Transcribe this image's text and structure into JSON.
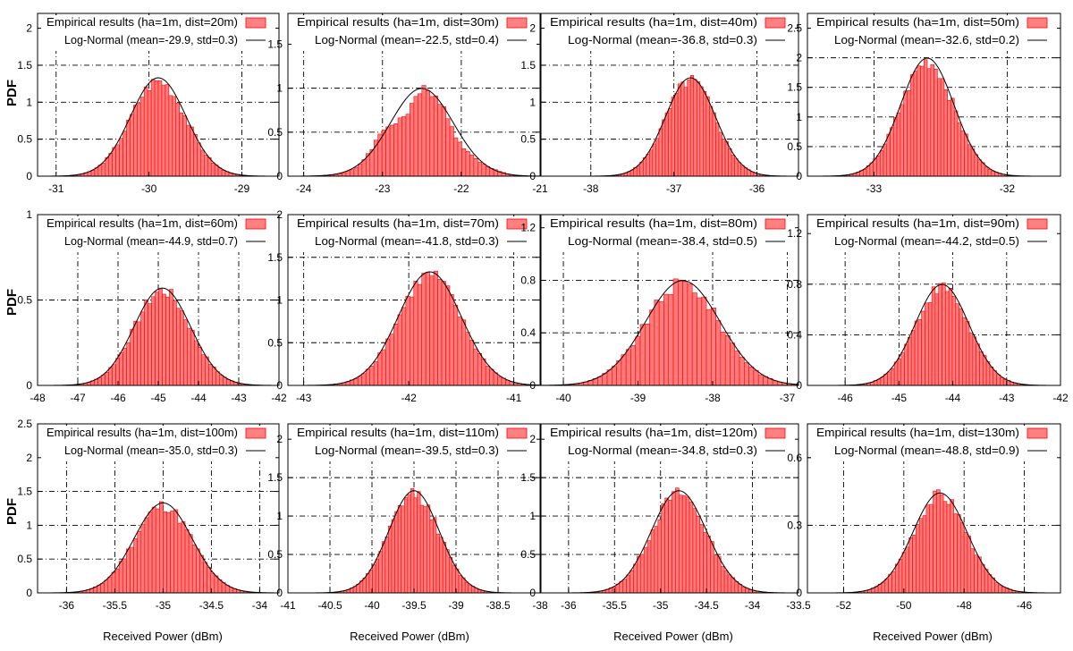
{
  "figure": {
    "ylabel": "PDF",
    "xlabel": "Received Power (dBm)",
    "bar_color": "#ff0000",
    "bar_fill": "#ff7a7a",
    "curve_color": "#000000",
    "legend_swatch_fill": "#ff8080"
  },
  "chart_data": [
    {
      "type": "bar",
      "title": "",
      "legend": [
        "Empirical results (ha=1m, dist=20m)",
        "Log-Normal (mean=-29.9, std=0.3)"
      ],
      "mean": -29.9,
      "std": 0.3,
      "xlim": [
        -31.2,
        -28.6
      ],
      "xticks": [
        -31,
        -30,
        -29
      ],
      "xtick_labels": [
        "-31",
        "-30",
        "-29"
      ],
      "ylim": [
        0,
        2.2
      ],
      "yticks": [
        0,
        0.5,
        1,
        1.5,
        2
      ],
      "ytick_labels": [
        "0",
        "0.5",
        "1",
        "1.5",
        "2"
      ],
      "grid_x": [
        -31,
        -30,
        -29
      ],
      "grid_y": [
        0.5,
        1,
        1.5
      ]
    },
    {
      "type": "bar",
      "title": "",
      "legend": [
        "Empirical results (ha=1m, dist=30m)",
        "Log-Normal (mean=-22.5, std=0.4)"
      ],
      "mean": -22.5,
      "std": 0.4,
      "xlim": [
        -24.2,
        -21
      ],
      "xticks": [
        -24,
        -23,
        -22,
        -21
      ],
      "xtick_labels": [
        "-24",
        "-23",
        "-22",
        "-21"
      ],
      "ylim": [
        0,
        1.85
      ],
      "yticks": [
        0,
        0.5,
        1,
        1.5
      ],
      "ytick_labels": [
        "0",
        "0.5",
        "1",
        "1.5"
      ],
      "grid_x": [
        -24,
        -23,
        -22
      ],
      "grid_y": [
        0.5,
        1
      ],
      "bumpy": true
    },
    {
      "type": "bar",
      "title": "",
      "legend": [
        "Empirical results (ha=1m, dist=40m)",
        "Log-Normal (mean=-36.8, std=0.3)"
      ],
      "mean": -36.8,
      "std": 0.3,
      "xlim": [
        -38.6,
        -35.5
      ],
      "xticks": [
        -38,
        -37,
        -36
      ],
      "xtick_labels": [
        "-38",
        "-37",
        "-36"
      ],
      "ylim": [
        0,
        2.2
      ],
      "yticks": [
        0,
        0.5,
        1,
        1.5,
        2
      ],
      "ytick_labels": [
        "0",
        "0.5",
        "1",
        "1.5",
        "2"
      ],
      "grid_x": [
        -38,
        -37,
        -36
      ],
      "grid_y": [
        0.5,
        1,
        1.5
      ]
    },
    {
      "type": "bar",
      "title": "",
      "legend": [
        "Empirical results (ha=1m, dist=50m)",
        "Log-Normal (mean=-32.6, std=0.2)"
      ],
      "mean": -32.6,
      "std": 0.2,
      "xlim": [
        -33.5,
        -31.6
      ],
      "xticks": [
        -33,
        -32
      ],
      "xtick_labels": [
        "-33",
        "-32"
      ],
      "ylim": [
        0,
        2.75
      ],
      "yticks": [
        0,
        0.5,
        1,
        1.5,
        2,
        2.5
      ],
      "ytick_labels": [
        "0",
        "0.5",
        "1",
        "1.5",
        "2",
        "2.5"
      ],
      "grid_x": [
        -33,
        -32
      ],
      "grid_y": [
        0.5,
        1,
        1.5,
        2
      ]
    },
    {
      "type": "bar",
      "title": "",
      "legend": [
        "Empirical results (ha=1m, dist=60m)",
        "Log-Normal (mean=-44.9, std=0.7)"
      ],
      "mean": -44.9,
      "std": 0.7,
      "xlim": [
        -48,
        -42
      ],
      "xticks": [
        -48,
        -47,
        -46,
        -45,
        -44,
        -43,
        -42
      ],
      "xtick_labels": [
        "-48",
        "-47",
        "-46",
        "-45",
        "-44",
        "-43",
        "-42"
      ],
      "ylim": [
        0,
        1
      ],
      "yticks": [
        0,
        0.5,
        1
      ],
      "ytick_labels": [
        "0",
        "0.5",
        "1"
      ],
      "grid_x": [
        -47,
        -46,
        -45,
        -44,
        -43
      ],
      "grid_y": [
        0.5
      ]
    },
    {
      "type": "bar",
      "title": "",
      "legend": [
        "Empirical results (ha=1m, dist=70m)",
        "Log-Normal (mean=-41.8, std=0.3)"
      ],
      "mean": -41.8,
      "std": 0.3,
      "xlim": [
        -43.15,
        -40.75
      ],
      "xticks": [
        -43,
        -42,
        -41
      ],
      "xtick_labels": [
        "-43",
        "-42",
        "-41"
      ],
      "ylim": [
        0,
        2
      ],
      "yticks": [
        0,
        0.5,
        1,
        1.5,
        2
      ],
      "ytick_labels": [
        "0",
        "0.5",
        "1",
        "1.5",
        "2"
      ],
      "grid_x": [
        -43,
        -42,
        -41
      ],
      "grid_y": [
        0.5,
        1,
        1.5
      ]
    },
    {
      "type": "bar",
      "title": "",
      "legend": [
        "Empirical results (ha=1m, dist=80m)",
        "Log-Normal (mean=-38.4, std=0.5)"
      ],
      "mean": -38.4,
      "std": 0.5,
      "xlim": [
        -40.3,
        -36.85
      ],
      "xticks": [
        -40,
        -39,
        -38,
        -37
      ],
      "xtick_labels": [
        "-40",
        "-39",
        "-38",
        "-37"
      ],
      "ylim": [
        0,
        1.3
      ],
      "yticks": [
        0,
        0.4,
        0.8,
        1.2
      ],
      "ytick_labels": [
        "0",
        "0.4",
        "0.8",
        "1.2"
      ],
      "grid_x": [
        -40,
        -39,
        -38,
        -37
      ],
      "grid_y": [
        0.4,
        0.8
      ]
    },
    {
      "type": "bar",
      "title": "",
      "legend": [
        "Empirical results (ha=1m, dist=90m)",
        "Log-Normal (mean=-44.2, std=0.5)"
      ],
      "mean": -44.2,
      "std": 0.5,
      "xlim": [
        -46.7,
        -42
      ],
      "xticks": [
        -46,
        -45,
        -44,
        -43,
        -42
      ],
      "xtick_labels": [
        "-46",
        "-45",
        "-44",
        "-43",
        "-42"
      ],
      "ylim": [
        0,
        1.35
      ],
      "yticks": [
        0,
        0.4,
        0.8,
        1.2
      ],
      "ytick_labels": [
        "0",
        "0.4",
        "0.8",
        "1.2"
      ],
      "grid_x": [
        -46,
        -45,
        -44,
        -43
      ],
      "grid_y": [
        0.4,
        0.8
      ]
    },
    {
      "type": "bar",
      "title": "",
      "legend": [
        "Empirical results (ha=1m, dist=100m)",
        "Log-Normal (mean=-35.0, std=0.3)"
      ],
      "mean": -35.0,
      "std": 0.3,
      "xlim": [
        -36.3,
        -33.8
      ],
      "xticks": [
        -36,
        -35.5,
        -35,
        -34.5,
        -34
      ],
      "xtick_labels": [
        "-36",
        "-35.5",
        "-35",
        "-34.5",
        "-34"
      ],
      "ylim": [
        0,
        2.5
      ],
      "yticks": [
        0,
        0.5,
        1,
        1.5,
        2,
        2.5
      ],
      "ytick_labels": [
        "0",
        "0.5",
        "1",
        "1.5",
        "2",
        "2.5"
      ],
      "grid_x": [
        -36,
        -35.5,
        -35,
        -34.5,
        -34
      ],
      "grid_y": [
        0.5,
        1,
        1.5
      ]
    },
    {
      "type": "bar",
      "title": "",
      "legend": [
        "Empirical results (ha=1m, dist=110m)",
        "Log-Normal (mean=-39.5, std=0.3)"
      ],
      "mean": -39.5,
      "std": 0.3,
      "xlim": [
        -41,
        -38
      ],
      "xticks": [
        -41,
        -40.5,
        -40,
        -39.5,
        -39,
        -38.5,
        -38
      ],
      "xtick_labels": [
        "-41",
        "-40.5",
        "-40",
        "-39.5",
        "-39",
        "-38.5",
        "-38"
      ],
      "ylim": [
        0,
        2.2
      ],
      "yticks": [
        0,
        0.5,
        1,
        1.5,
        2
      ],
      "ytick_labels": [
        "0",
        "0.5",
        "1",
        "1.5",
        "2"
      ],
      "grid_x": [
        -40.5,
        -40,
        -39.5,
        -39,
        -38.5
      ],
      "grid_y": [
        0.5,
        1,
        1.5
      ]
    },
    {
      "type": "bar",
      "title": "",
      "legend": [
        "Empirical results (ha=1m, dist=120m)",
        "Log-Normal (mean=-34.8, std=0.3)"
      ],
      "mean": -34.8,
      "std": 0.3,
      "xlim": [
        -36.3,
        -33.5
      ],
      "xticks": [
        -36,
        -35.5,
        -35,
        -34.5,
        -34,
        -33.5
      ],
      "xtick_labels": [
        "-36",
        "-35.5",
        "-35",
        "-34.5",
        "-34",
        "-33.5"
      ],
      "ylim": [
        0,
        2.2
      ],
      "yticks": [
        0,
        0.5,
        1,
        1.5,
        2
      ],
      "ytick_labels": [
        "0",
        "0.5",
        "1",
        "1.5",
        "2"
      ],
      "grid_x": [
        -36,
        -35.5,
        -35,
        -34.5,
        -34
      ],
      "grid_y": [
        0.5,
        1,
        1.5
      ]
    },
    {
      "type": "bar",
      "title": "",
      "legend": [
        "Empirical results (ha=1m, dist=130m)",
        "Log-Normal (mean=-48.8, std=0.9)"
      ],
      "mean": -48.8,
      "std": 0.9,
      "xlim": [
        -53.2,
        -44.8
      ],
      "xticks": [
        -52,
        -50,
        -48,
        -46
      ],
      "xtick_labels": [
        "-52",
        "-50",
        "-48",
        "-46"
      ],
      "ylim": [
        0,
        0.75
      ],
      "yticks": [
        0,
        0.3,
        0.6
      ],
      "ytick_labels": [
        "0",
        "0.3",
        "0.6"
      ],
      "grid_x": [
        -52,
        -50,
        -48,
        -46
      ],
      "grid_y": [
        0.3,
        0.6
      ]
    }
  ]
}
